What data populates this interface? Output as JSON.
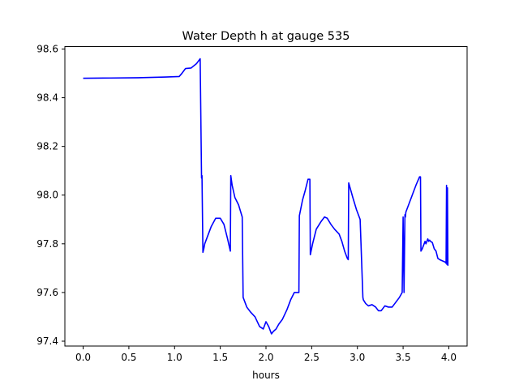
{
  "chart_data": {
    "type": "line",
    "title": "Water Depth h at gauge 535",
    "xlabel": "hours",
    "ylabel": "",
    "xlim": [
      -0.2,
      4.2
    ],
    "ylim": [
      97.38,
      98.61
    ],
    "xticks": [
      0.0,
      0.5,
      1.0,
      1.5,
      2.0,
      2.5,
      3.0,
      3.5,
      4.0
    ],
    "xtick_labels": [
      "0.0",
      "0.5",
      "1.0",
      "1.5",
      "2.0",
      "2.5",
      "3.0",
      "3.5",
      "4.0"
    ],
    "yticks": [
      97.4,
      97.6,
      97.8,
      98.0,
      98.2,
      98.4,
      98.6
    ],
    "ytick_labels": [
      "97.4",
      "97.6",
      "97.8",
      "98.0",
      "98.2",
      "98.4",
      "98.6"
    ],
    "grid": false,
    "colors": {
      "line": "#0000ff",
      "axes": "#000000",
      "background": "#ffffff"
    },
    "series": [
      {
        "x": [
          0.0,
          0.3,
          0.6,
          0.9,
          1.05,
          1.08,
          1.12,
          1.18,
          1.24,
          1.28,
          1.295,
          1.3,
          1.31,
          1.32,
          1.33,
          1.36,
          1.4,
          1.45,
          1.5,
          1.54,
          1.58,
          1.61,
          1.615,
          1.63,
          1.66,
          1.7,
          1.74,
          1.75,
          1.76,
          1.79,
          1.83,
          1.88,
          1.93,
          1.97,
          2.0,
          2.03,
          2.06,
          2.08,
          2.11,
          2.14,
          2.18,
          2.23,
          2.27,
          2.31,
          2.36,
          2.365,
          2.4,
          2.43,
          2.46,
          2.48,
          2.485,
          2.51,
          2.55,
          2.6,
          2.64,
          2.67,
          2.71,
          2.75,
          2.8,
          2.83,
          2.86,
          2.89,
          2.9,
          2.905,
          2.92,
          2.95,
          2.99,
          3.03,
          3.06,
          3.065,
          3.09,
          3.12,
          3.16,
          3.2,
          3.23,
          3.26,
          3.3,
          3.34,
          3.38,
          3.42,
          3.46,
          3.49,
          3.5,
          3.51,
          3.52,
          3.525,
          3.53,
          3.56,
          3.6,
          3.64,
          3.68,
          3.69,
          3.695,
          3.71,
          3.73,
          3.74,
          3.75,
          3.76,
          3.77,
          3.78,
          3.79,
          3.8,
          3.82,
          3.84,
          3.86,
          3.88,
          3.9,
          3.93,
          3.96,
          3.97,
          3.975,
          3.98,
          3.985,
          3.99
        ],
        "y": [
          98.48,
          98.481,
          98.482,
          98.485,
          98.487,
          98.5,
          98.52,
          98.522,
          98.54,
          98.56,
          98.07,
          98.08,
          97.765,
          97.78,
          97.8,
          97.83,
          97.87,
          97.905,
          97.905,
          97.88,
          97.82,
          97.77,
          98.08,
          98.04,
          97.99,
          97.96,
          97.91,
          97.58,
          97.57,
          97.54,
          97.52,
          97.5,
          97.46,
          97.45,
          97.48,
          97.46,
          97.43,
          97.44,
          97.45,
          97.47,
          97.49,
          97.53,
          97.57,
          97.6,
          97.6,
          97.915,
          97.98,
          98.02,
          98.065,
          98.065,
          97.755,
          97.8,
          97.86,
          97.89,
          97.91,
          97.905,
          97.88,
          97.86,
          97.84,
          97.81,
          97.77,
          97.74,
          97.735,
          98.05,
          98.03,
          97.99,
          97.94,
          97.9,
          97.58,
          97.57,
          97.555,
          97.545,
          97.55,
          97.54,
          97.525,
          97.525,
          97.545,
          97.54,
          97.54,
          97.56,
          97.58,
          97.6,
          97.91,
          97.6,
          97.92,
          97.91,
          97.93,
          97.96,
          98.0,
          98.04,
          98.075,
          98.075,
          97.77,
          97.78,
          97.8,
          97.81,
          97.8,
          97.81,
          97.82,
          97.81,
          97.815,
          97.81,
          97.805,
          97.78,
          97.77,
          97.74,
          97.735,
          97.73,
          97.725,
          97.72,
          98.04,
          97.715,
          98.03,
          97.71
        ]
      }
    ]
  }
}
